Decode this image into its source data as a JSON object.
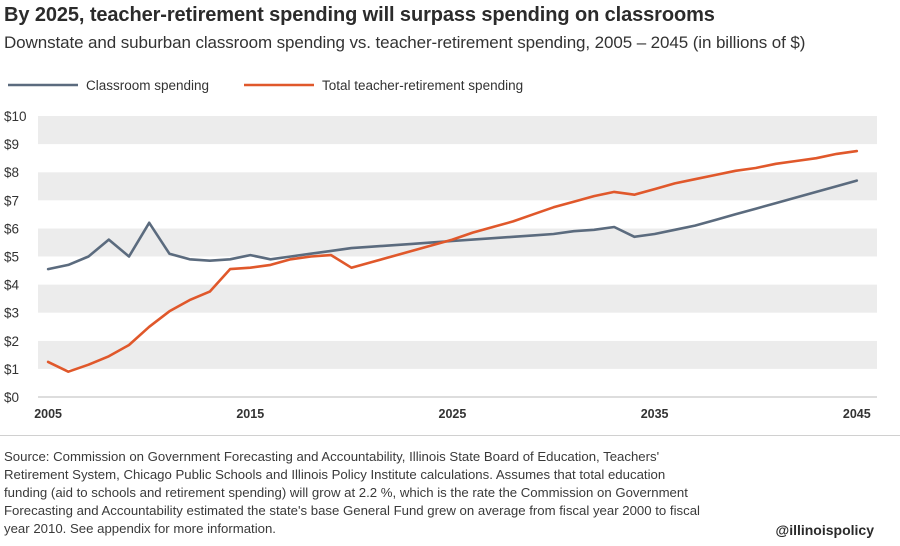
{
  "title": "By 2025, teacher-retirement spending will surpass spending on classrooms",
  "subtitle": "Downstate and suburban classroom spending vs. teacher-retirement spending, 2005 – 2045 (in billions of $)",
  "footer": {
    "source": "Source: Commission on Government Forecasting and Accountability, Illinois State Board of Education, Teachers' Retirement System, Chicago Public Schools and Illinois Policy Institute calculations. Assumes that total education funding (aid to schools and retirement spending) will grow at 2.2 %, which is the rate the Commission on Government Forecasting and Accountability estimated the state's base General Fund grew on average from fiscal year 2000 to fiscal year 2010. See appendix for more information.",
    "handle": "@illinoispolicy"
  },
  "chart_data": {
    "type": "line",
    "xlim": [
      2004.5,
      2046
    ],
    "ylim": [
      0,
      10
    ],
    "x_ticks": [
      2005,
      2015,
      2025,
      2035,
      2045
    ],
    "y_ticks": [
      0,
      1,
      2,
      3,
      4,
      5,
      6,
      7,
      8,
      9,
      10
    ],
    "y_tick_labels": [
      "$0",
      "$1",
      "$2",
      "$3",
      "$4",
      "$5",
      "$6",
      "$7",
      "$8",
      "$9",
      "$10"
    ],
    "grid": "horizontal alternating bands",
    "legend_position": "top-left",
    "series": [
      {
        "name": "Classroom spending",
        "color": "#5b6b7e",
        "x": [
          2005,
          2006,
          2007,
          2008,
          2009,
          2010,
          2011,
          2012,
          2013,
          2014,
          2015,
          2016,
          2017,
          2018,
          2019,
          2020,
          2021,
          2022,
          2023,
          2024,
          2025,
          2026,
          2027,
          2028,
          2029,
          2030,
          2031,
          2032,
          2033,
          2034,
          2035,
          2036,
          2037,
          2038,
          2039,
          2040,
          2041,
          2042,
          2043,
          2044,
          2045
        ],
        "values": [
          4.55,
          4.7,
          5.0,
          5.6,
          5.0,
          6.2,
          5.1,
          4.9,
          4.85,
          4.9,
          5.05,
          4.9,
          5.0,
          5.1,
          5.2,
          5.3,
          5.35,
          5.4,
          5.45,
          5.5,
          5.55,
          5.6,
          5.65,
          5.7,
          5.75,
          5.8,
          5.9,
          5.95,
          6.05,
          5.7,
          5.8,
          5.95,
          6.1,
          6.3,
          6.5,
          6.7,
          6.9,
          7.1,
          7.3,
          7.5,
          7.7
        ]
      },
      {
        "name": "Total teacher-retirement spending",
        "color": "#e0582b",
        "x": [
          2005,
          2006,
          2007,
          2008,
          2009,
          2010,
          2011,
          2012,
          2013,
          2014,
          2015,
          2016,
          2017,
          2018,
          2019,
          2020,
          2021,
          2022,
          2023,
          2024,
          2025,
          2026,
          2027,
          2028,
          2029,
          2030,
          2031,
          2032,
          2033,
          2034,
          2035,
          2036,
          2037,
          2038,
          2039,
          2040,
          2041,
          2042,
          2043,
          2044,
          2045
        ],
        "values": [
          1.25,
          0.9,
          1.15,
          1.45,
          1.85,
          2.5,
          3.05,
          3.45,
          3.75,
          4.55,
          4.6,
          4.7,
          4.9,
          5.0,
          5.05,
          4.6,
          4.8,
          5.0,
          5.2,
          5.4,
          5.6,
          5.85,
          6.05,
          6.25,
          6.5,
          6.75,
          6.95,
          7.15,
          7.3,
          7.2,
          7.4,
          7.6,
          7.75,
          7.9,
          8.05,
          8.15,
          8.3,
          8.4,
          8.5,
          8.65,
          8.75
        ]
      }
    ]
  }
}
